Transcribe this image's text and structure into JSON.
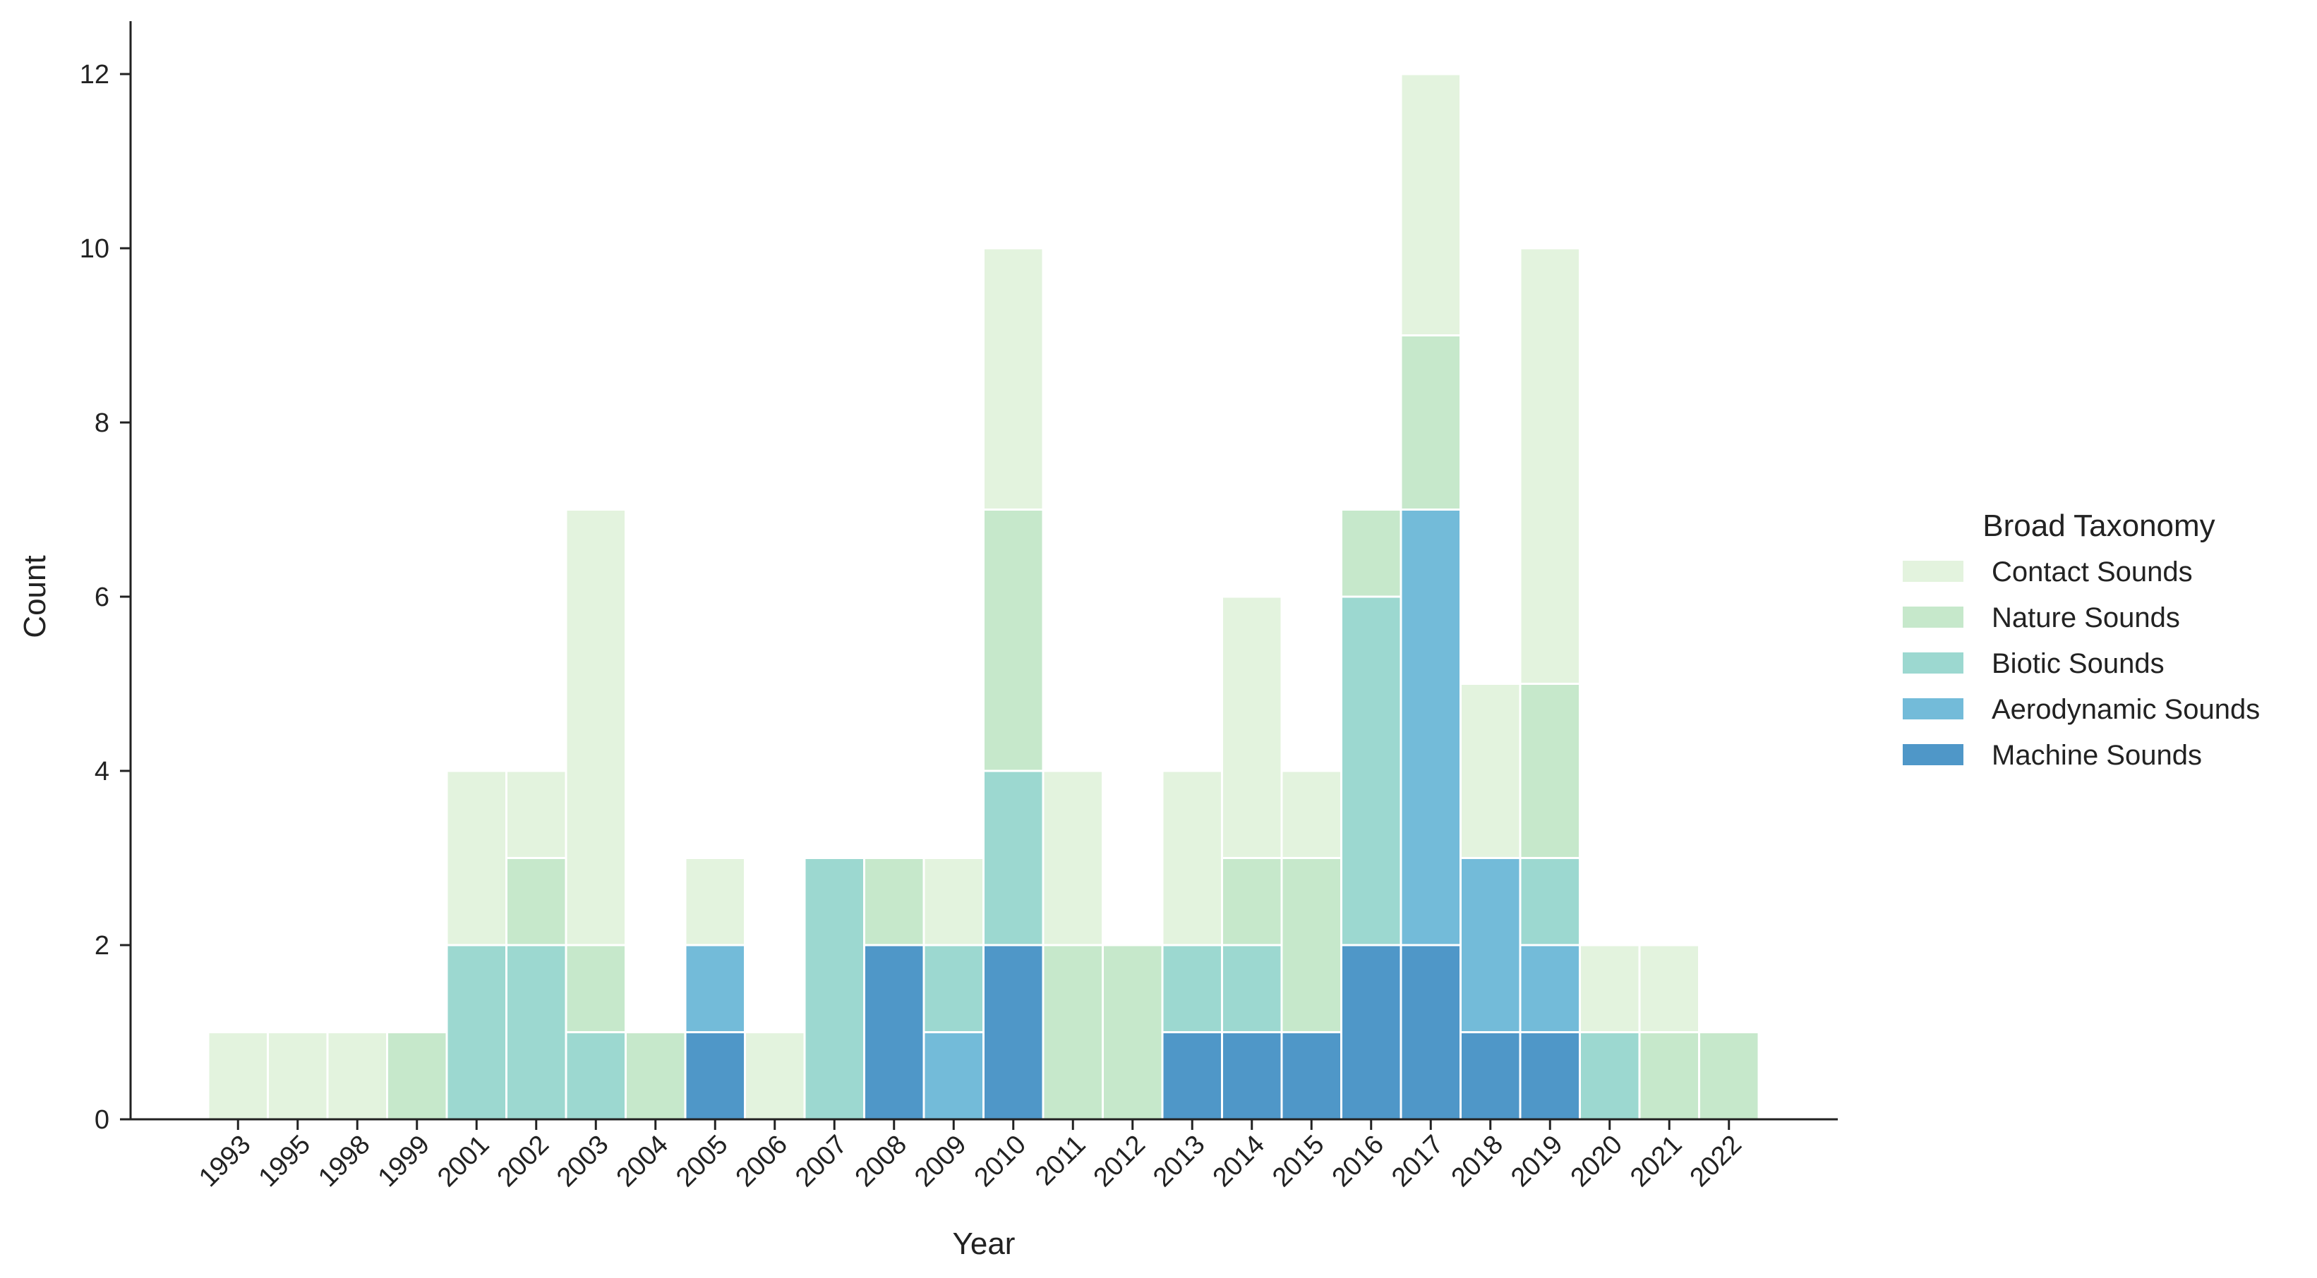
{
  "chart_data": {
    "type": "bar",
    "stacked": true,
    "title": "",
    "xlabel": "Year",
    "ylabel": "Count",
    "ylim": [
      0,
      12.6
    ],
    "yticks": [
      0,
      2,
      4,
      6,
      8,
      10,
      12
    ],
    "grid": false,
    "legend": {
      "title": "Broad Taxonomy",
      "placement": "right"
    },
    "categories": [
      "1993",
      "1995",
      "1998",
      "1999",
      "2001",
      "2002",
      "2003",
      "2004",
      "2005",
      "2006",
      "2007",
      "2008",
      "2009",
      "2010",
      "2011",
      "2012",
      "2013",
      "2014",
      "2015",
      "2016",
      "2017",
      "2018",
      "2019",
      "2020",
      "2021",
      "2022"
    ],
    "series": [
      {
        "name": "Machine Sounds",
        "color": "#4f97c8",
        "values": [
          0,
          0,
          0,
          0,
          0,
          0,
          0,
          0,
          1,
          0,
          0,
          2,
          0,
          2,
          0,
          0,
          1,
          1,
          1,
          2,
          2,
          1,
          1,
          0,
          0,
          0
        ]
      },
      {
        "name": "Aerodynamic Sounds",
        "color": "#73bbd9",
        "values": [
          0,
          0,
          0,
          0,
          0,
          0,
          0,
          0,
          1,
          0,
          0,
          0,
          1,
          0,
          0,
          0,
          0,
          0,
          0,
          0,
          5,
          2,
          1,
          0,
          0,
          0
        ]
      },
      {
        "name": "Biotic Sounds",
        "color": "#9cd8d0",
        "values": [
          0,
          0,
          0,
          0,
          2,
          2,
          1,
          0,
          0,
          0,
          3,
          0,
          1,
          2,
          0,
          0,
          1,
          1,
          0,
          4,
          0,
          0,
          1,
          1,
          0,
          0
        ]
      },
      {
        "name": "Nature Sounds",
        "color": "#c6e8cb",
        "values": [
          0,
          0,
          0,
          1,
          0,
          1,
          1,
          1,
          0,
          0,
          0,
          1,
          0,
          3,
          2,
          2,
          0,
          1,
          2,
          1,
          2,
          0,
          2,
          0,
          1,
          1
        ]
      },
      {
        "name": "Contact Sounds",
        "color": "#e3f3de",
        "values": [
          1,
          1,
          1,
          0,
          2,
          1,
          5,
          0,
          1,
          1,
          0,
          0,
          1,
          3,
          2,
          0,
          2,
          3,
          1,
          0,
          3,
          2,
          5,
          1,
          1,
          0
        ]
      }
    ],
    "legend_order": [
      "Contact Sounds",
      "Nature Sounds",
      "Biotic Sounds",
      "Aerodynamic Sounds",
      "Machine Sounds"
    ]
  }
}
